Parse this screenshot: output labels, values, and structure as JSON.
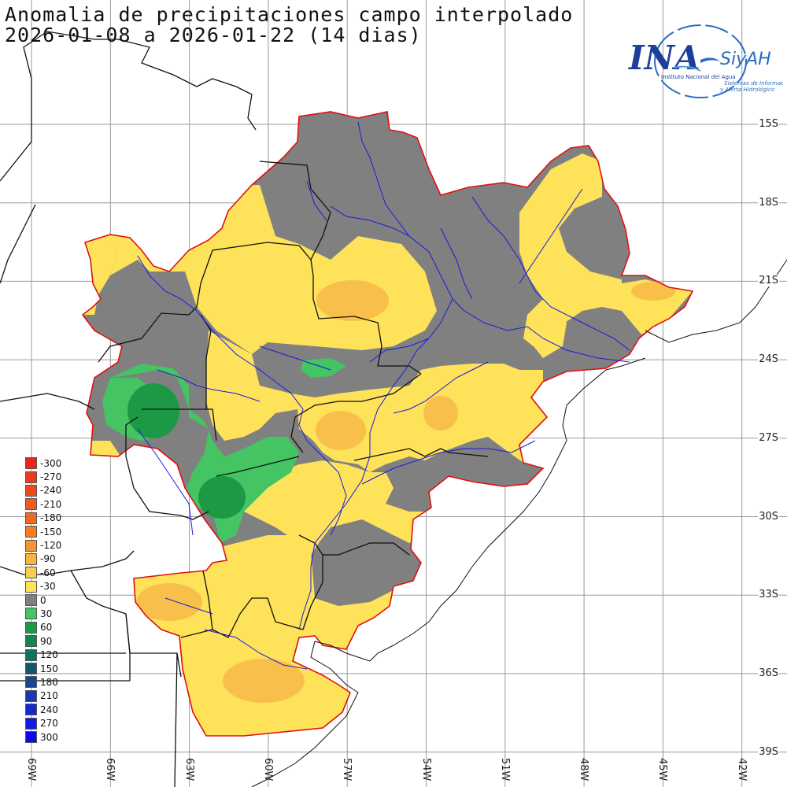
{
  "title": {
    "line1": "Anomalia de precipitaciones campo interpolado",
    "line2": "2026-01-08 a 2026-01-22 (14 dias)"
  },
  "logo": {
    "name": "INA",
    "siyah": "SiyAH",
    "subtitle1": "Instituto Nacional del Agua",
    "subtitle2": "Sistemas de Información",
    "subtitle3": "y Alerta Hidrológico"
  },
  "lat_labels": [
    "15S",
    "18S",
    "21S",
    "24S",
    "27S",
    "30S",
    "33S",
    "36S",
    "39S"
  ],
  "lon_labels": [
    "69W",
    "66W",
    "63W",
    "60W",
    "57W",
    "54W",
    "51W",
    "48W",
    "45W",
    "42W"
  ],
  "legend": [
    {
      "value": "-300",
      "color": "#e8251e"
    },
    {
      "value": "-270",
      "color": "#ec3a1c"
    },
    {
      "value": "-240",
      "color": "#ee4a1e"
    },
    {
      "value": "-210",
      "color": "#f05a1e"
    },
    {
      "value": "-180",
      "color": "#f26a20"
    },
    {
      "value": "-150",
      "color": "#f57e25"
    },
    {
      "value": "-120",
      "color": "#f7962e"
    },
    {
      "value": "-90",
      "color": "#f8b540"
    },
    {
      "value": "-60",
      "color": "#fbcd4c"
    },
    {
      "value": "-30",
      "color": "#fde25a"
    },
    {
      "value": "0",
      "color": "#808080"
    },
    {
      "value": "30",
      "color": "#44c463"
    },
    {
      "value": "60",
      "color": "#1c9944"
    },
    {
      "value": "90",
      "color": "#158454"
    },
    {
      "value": "120",
      "color": "#127260"
    },
    {
      "value": "150",
      "color": "#10586c"
    },
    {
      "value": "180",
      "color": "#1a4690"
    },
    {
      "value": "210",
      "color": "#1838b0"
    },
    {
      "value": "240",
      "color": "#1428cc"
    },
    {
      "value": "270",
      "color": "#101ce0"
    },
    {
      "value": "300",
      "color": "#0a0af0"
    }
  ],
  "colors": {
    "grey": "#808080",
    "yellow": "#fde25a",
    "orange": "#f8c04a",
    "light_green": "#44c463",
    "dark_green": "#1c9944",
    "basin_outline": "#e01010",
    "rivers": "#1a1adc",
    "grid": "#9a9a9a"
  }
}
